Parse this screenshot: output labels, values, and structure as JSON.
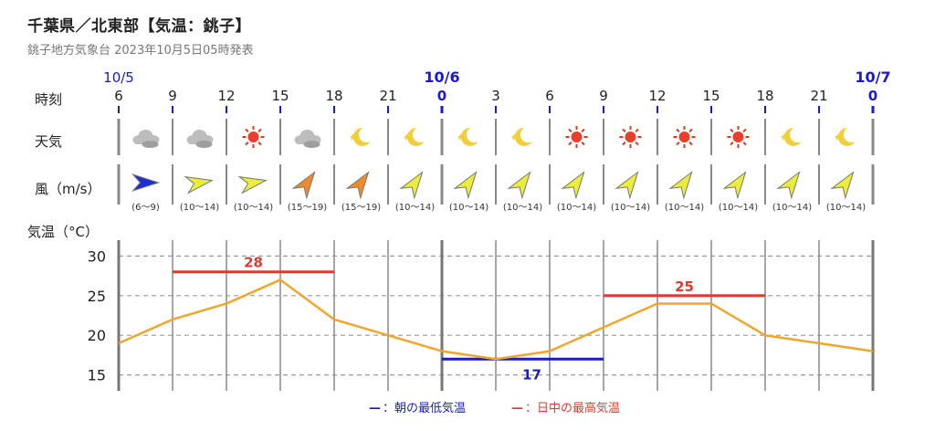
{
  "header": {
    "title": "千葉県／北東部【気温：銚子】",
    "subtitle": "銚子地方気象台 2023年10月5日05時発表"
  },
  "rows": {
    "time_label": "時刻",
    "weather_label": "天気",
    "wind_label": "風（m/s）",
    "temp_label": "気温（°C）"
  },
  "legend": {
    "min_dash": "—",
    "min_text": "：朝の最低気温",
    "max_dash": "—",
    "max_text": "：日中の最高気温"
  },
  "colors": {
    "line": "#f0a52c",
    "max": "#e03a2e",
    "min": "#1a1acc",
    "date": "#1a1acc",
    "grid": "#9a9a9a"
  },
  "chart_data": {
    "type": "line",
    "hours": [
      "6",
      "9",
      "12",
      "15",
      "18",
      "21",
      "0",
      "3",
      "6",
      "9",
      "12",
      "15",
      "18",
      "21",
      "0"
    ],
    "date_labels": [
      {
        "index": 0,
        "text": "10/5",
        "bold": false
      },
      {
        "index": 6,
        "text": "10/6",
        "bold": true
      },
      {
        "index": 14,
        "text": "10/7",
        "bold": true
      }
    ],
    "day_boundaries": [
      6,
      14
    ],
    "weather": [
      "cloudy",
      "cloudy",
      "sunny",
      "cloudy",
      "clear-night",
      "clear-night",
      "clear-night",
      "clear-night",
      "sunny",
      "sunny",
      "sunny",
      "sunny",
      "clear-night",
      "clear-night"
    ],
    "wind": [
      {
        "range": "(6〜9)",
        "color": "#1a2fd6",
        "angle": 0
      },
      {
        "range": "(10〜14)",
        "color": "#ecec3a",
        "angle": -10
      },
      {
        "range": "(10〜14)",
        "color": "#ecec3a",
        "angle": -10
      },
      {
        "range": "(15〜19)",
        "color": "#ef8a2c",
        "angle": -55
      },
      {
        "range": "(15〜19)",
        "color": "#ef8a2c",
        "angle": -55
      },
      {
        "range": "(10〜14)",
        "color": "#ecec3a",
        "angle": -55
      },
      {
        "range": "(10〜14)",
        "color": "#ecec3a",
        "angle": -55
      },
      {
        "range": "(10〜14)",
        "color": "#ecec3a",
        "angle": -55
      },
      {
        "range": "(10〜14)",
        "color": "#ecec3a",
        "angle": -55
      },
      {
        "range": "(10〜14)",
        "color": "#ecec3a",
        "angle": -55
      },
      {
        "range": "(10〜14)",
        "color": "#ecec3a",
        "angle": -55
      },
      {
        "range": "(10〜14)",
        "color": "#ecec3a",
        "angle": -55
      },
      {
        "range": "(10〜14)",
        "color": "#ecec3a",
        "angle": -55
      },
      {
        "range": "(10〜14)",
        "color": "#ecec3a",
        "angle": -55
      }
    ],
    "temperature": [
      19,
      22,
      24,
      27,
      22,
      20,
      18,
      17,
      18,
      21,
      24,
      24,
      20,
      19,
      18
    ],
    "ylim": [
      13,
      32
    ],
    "yticks": [
      15,
      20,
      25,
      30
    ],
    "grid": true,
    "max_temps": [
      {
        "value": 28,
        "label": "28",
        "from": 1,
        "to": 4
      },
      {
        "value": 25,
        "label": "25",
        "from": 9,
        "to": 12
      }
    ],
    "min_temps": [
      {
        "value": 17,
        "label": "17",
        "from": 6,
        "to": 9
      }
    ]
  }
}
